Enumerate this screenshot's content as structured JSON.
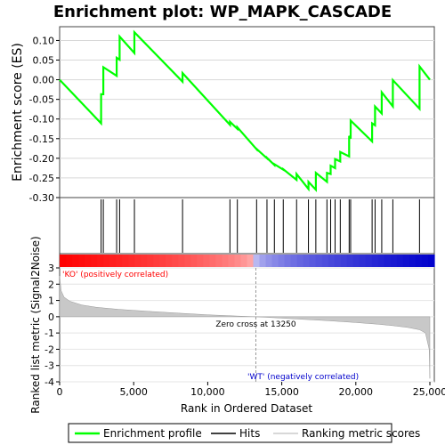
{
  "chart_data": {
    "type": "line",
    "title": "Enrichment plot: WP_MAPK_CASCADE",
    "top_panel": {
      "ylabel": "Enrichment score (ES)",
      "ylim": [
        -0.3,
        0.135
      ],
      "yticks": [
        -0.3,
        -0.25,
        -0.2,
        -0.15,
        -0.1,
        -0.05,
        0.0,
        0.05,
        0.1
      ],
      "ytick_labels": [
        "-0.30",
        "-0.25",
        "-0.20",
        "-0.15",
        "-0.10",
        "-0.05",
        "0.00",
        "0.05",
        "0.10"
      ],
      "series": [
        {
          "name": "Enrichment profile",
          "color": "#00ff00",
          "x": [
            0,
            2800,
            2800,
            2950,
            2950,
            3850,
            3850,
            4050,
            4050,
            5050,
            5050,
            8300,
            8300,
            11500,
            11500,
            12000,
            12000,
            13300,
            13300,
            14000,
            14000,
            14500,
            14500,
            15100,
            15100,
            16000,
            16000,
            16800,
            16800,
            17300,
            17300,
            18050,
            18050,
            18300,
            18300,
            18600,
            18600,
            18950,
            18950,
            19550,
            19550,
            19650,
            19650,
            21100,
            21100,
            21300,
            21300,
            21750,
            21750,
            22500,
            22500,
            24300,
            24300,
            25000
          ],
          "y": [
            0.0,
            -0.111,
            -0.037,
            -0.037,
            0.032,
            0.01,
            0.056,
            0.051,
            0.11,
            0.068,
            0.121,
            -0.005,
            0.017,
            -0.115,
            -0.107,
            -0.125,
            -0.121,
            -0.177,
            -0.176,
            -0.2,
            -0.199,
            -0.217,
            -0.215,
            -0.229,
            -0.228,
            -0.255,
            -0.24,
            -0.278,
            -0.26,
            -0.28,
            -0.237,
            -0.26,
            -0.237,
            -0.24,
            -0.219,
            -0.225,
            -0.202,
            -0.208,
            -0.184,
            -0.195,
            -0.143,
            -0.15,
            -0.104,
            -0.157,
            -0.111,
            -0.116,
            -0.068,
            -0.086,
            -0.032,
            -0.068,
            -0.001,
            -0.074,
            0.034,
            0.0
          ]
        }
      ]
    },
    "hits": {
      "name": "Hits",
      "x": [
        2800,
        2950,
        3850,
        4050,
        5050,
        8300,
        11500,
        12000,
        13300,
        14000,
        14500,
        15100,
        16000,
        16800,
        17300,
        18050,
        18300,
        18600,
        18950,
        19550,
        19650,
        21100,
        21300,
        21750,
        22500,
        24300
      ]
    },
    "metric_panel": {
      "name": "Ranking metric scores",
      "ylabel": "Ranked list metric (Signal2Noise)",
      "ylim": [
        -4,
        3
      ],
      "yticks": [
        3,
        2,
        1,
        0,
        -1,
        -2,
        -3,
        -4
      ],
      "ytick_labels": [
        "3",
        "2",
        "1",
        "0",
        "-1",
        "-2",
        "-3",
        "-4"
      ],
      "zero_cross": 13250,
      "zero_cross_label": "Zero cross at 13250",
      "positive_label": "'KO' (positively correlated)",
      "negative_label": "'WT' (negatively correlated)",
      "positive_color": "#ff0000",
      "negative_color": "#0000cc",
      "profile_x": [
        0,
        100,
        300,
        700,
        1500,
        2500,
        4000,
        6000,
        8000,
        10000,
        12000,
        13250,
        14500,
        16000,
        18000,
        20000,
        21500,
        22500,
        23500,
        24300,
        24700,
        24950,
        25000
      ],
      "profile_y": [
        2.5,
        1.6,
        1.2,
        0.95,
        0.72,
        0.58,
        0.45,
        0.33,
        0.22,
        0.12,
        0.04,
        0.0,
        -0.06,
        -0.14,
        -0.24,
        -0.36,
        -0.46,
        -0.55,
        -0.66,
        -0.8,
        -1.0,
        -2.0,
        -3.8
      ]
    },
    "xaxis": {
      "xlabel": "Rank in Ordered Dataset",
      "xlim": [
        0,
        25300
      ],
      "xticks": [
        0,
        5000,
        10000,
        15000,
        20000,
        25000
      ],
      "xtick_labels": [
        "0",
        "5,000",
        "10,000",
        "15,000",
        "20,000",
        "25,000"
      ]
    },
    "legend": {
      "placement": "bottom",
      "items": [
        {
          "label": "Enrichment profile",
          "color": "#00ff00"
        },
        {
          "label": "Hits",
          "color": "#000000"
        },
        {
          "label": "Ranking metric scores",
          "color": "#cccccc"
        }
      ]
    }
  }
}
